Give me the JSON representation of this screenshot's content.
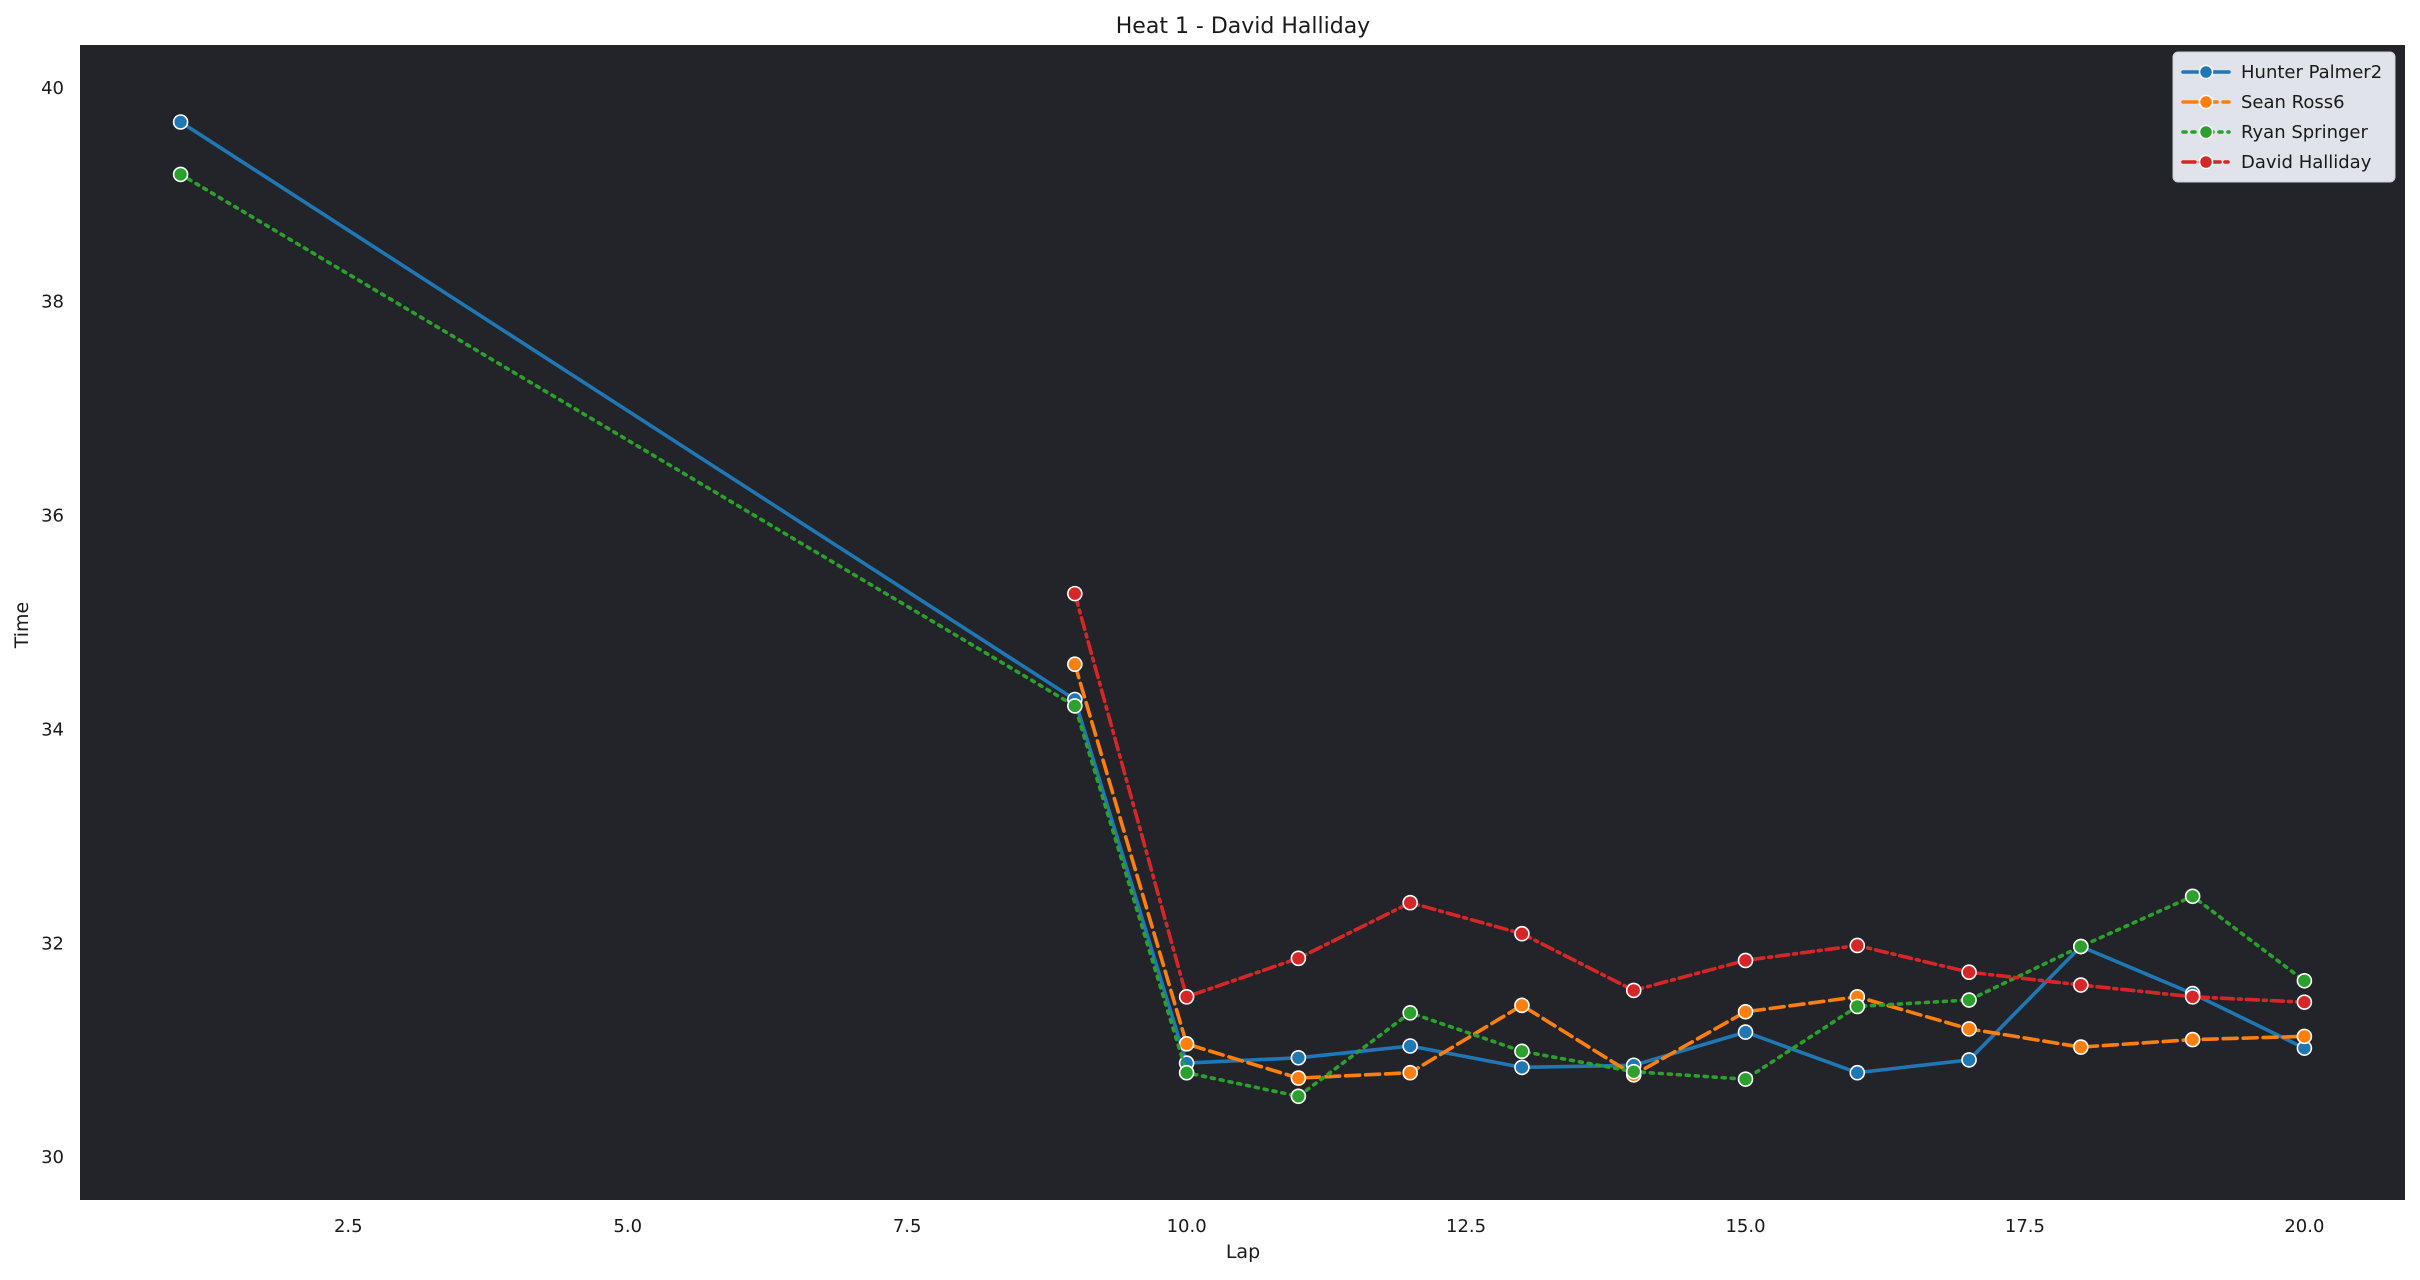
{
  "chart_data": {
    "type": "line",
    "title": "Heat 1 - David Halliday",
    "xlabel": "Lap",
    "ylabel": "Time",
    "xlim": [
      0.1,
      20.9
    ],
    "ylim": [
      29.6,
      40.4
    ],
    "xticks": [
      2.5,
      5.0,
      7.5,
      10.0,
      12.5,
      15.0,
      17.5,
      20.0
    ],
    "xtick_labels": [
      "2.5",
      "5.0",
      "7.5",
      "10.0",
      "12.5",
      "15.0",
      "17.5",
      "20.0"
    ],
    "yticks": [
      30,
      32,
      34,
      36,
      38,
      40
    ],
    "ytick_labels": [
      "30",
      "32",
      "34",
      "36",
      "38",
      "40"
    ],
    "grid": false,
    "legend": "top-right",
    "plot_background": "#222429",
    "series": [
      {
        "name": "Hunter Palmer2",
        "color": "#1f77b4",
        "dash": "solid",
        "x": [
          1,
          9,
          10,
          11,
          12,
          13,
          14,
          15,
          16,
          17,
          18,
          19,
          20
        ],
        "y": [
          39.68,
          34.28,
          30.88,
          30.93,
          31.04,
          30.84,
          30.86,
          31.17,
          30.79,
          30.91,
          31.97,
          31.53,
          31.02
        ]
      },
      {
        "name": "Sean Ross6",
        "color": "#ff7f0e",
        "dash": "dashed",
        "x": [
          9,
          10,
          11,
          12,
          13,
          14,
          15,
          16,
          17,
          18,
          19,
          20
        ],
        "y": [
          34.61,
          31.06,
          30.74,
          30.79,
          31.42,
          30.77,
          31.36,
          31.5,
          31.2,
          31.03,
          31.1,
          31.13
        ]
      },
      {
        "name": "Ryan Springer",
        "color": "#2ca02c",
        "dash": "dotted",
        "x": [
          1,
          9,
          10,
          11,
          12,
          13,
          14,
          15,
          16,
          17,
          18,
          19,
          20
        ],
        "y": [
          39.19,
          34.22,
          30.79,
          30.57,
          31.35,
          30.99,
          30.8,
          30.73,
          31.41,
          31.47,
          31.97,
          32.44,
          31.65
        ]
      },
      {
        "name": "David Halliday",
        "color": "#d62728",
        "dash": "dashdot",
        "x": [
          9,
          10,
          11,
          12,
          13,
          14,
          15,
          16,
          17,
          18,
          19,
          20
        ],
        "y": [
          35.27,
          31.5,
          31.86,
          32.38,
          32.09,
          31.56,
          31.84,
          31.98,
          31.73,
          31.61,
          31.5,
          31.45
        ]
      }
    ]
  }
}
